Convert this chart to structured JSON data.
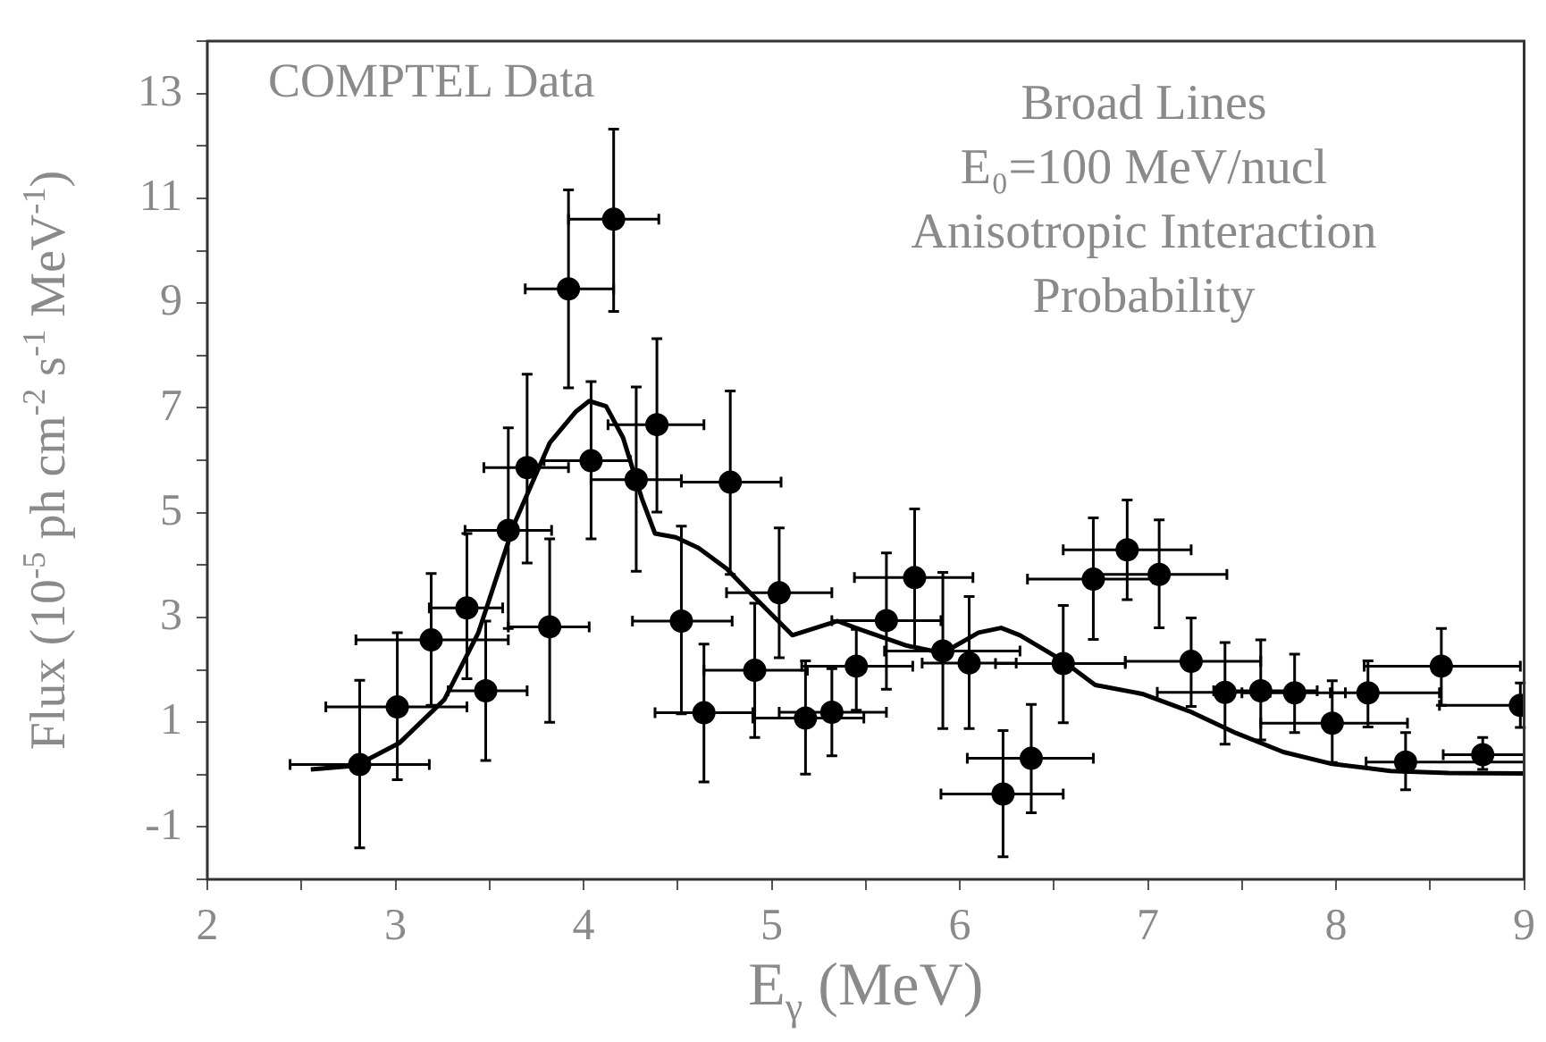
{
  "chart_data": {
    "type": "scatter",
    "xlabel": "E$_{γ}$ (MeV)",
    "ylabel": "Flux (10$^{-5}$ ph cm$^{-2}$ s$^{-1}$ MeV$^{-1}$)",
    "annotations": [
      "COMPTEL Data",
      "Broad Lines",
      "E₀=100 MeV/nucl",
      "Anisotropic Interaction",
      "Probability"
    ],
    "xlim": [
      2,
      9
    ],
    "ylim": [
      -2,
      14
    ],
    "xticks": [
      2,
      {
        "value": 2.5,
        "label": null
      },
      3,
      {
        "value": 3.5,
        "label": null
      },
      4,
      {
        "value": 4.5,
        "label": null
      },
      5,
      {
        "value": 5.5,
        "label": null
      },
      6,
      {
        "value": 6.5,
        "label": null
      },
      7,
      {
        "value": 7.5,
        "label": null
      },
      8,
      {
        "value": 8.5,
        "label": null
      },
      9
    ],
    "yticks": [
      {
        "value": -2,
        "label": null
      },
      -1,
      {
        "value": 0,
        "label": null
      },
      1,
      {
        "value": 2,
        "label": null
      },
      3,
      {
        "value": 4,
        "label": null
      },
      5,
      {
        "value": 6,
        "label": null
      },
      7,
      {
        "value": 8,
        "label": null
      },
      9,
      {
        "value": 10,
        "label": null
      },
      11,
      {
        "value": 12,
        "label": null
      },
      13,
      {
        "value": 14,
        "label": null
      }
    ],
    "grid": false,
    "legend": false,
    "marker": "circle",
    "series": [
      {
        "type": "scatter",
        "color": "#000000",
        "x": [
          2.81,
          3.01,
          3.19,
          3.38,
          3.48,
          3.6,
          3.7,
          3.82,
          3.92,
          4.16,
          4.04,
          4.28,
          4.39,
          4.78,
          4.52,
          4.64,
          4.91,
          5.04,
          5.18,
          5.32,
          5.45,
          5.61,
          5.76,
          5.91,
          6.05,
          6.23,
          6.38,
          6.55,
          6.71,
          6.89,
          7.06,
          7.23,
          7.41,
          7.6,
          7.78,
          7.98,
          8.17,
          8.37,
          8.56,
          8.78,
          8.98
        ],
        "values": [
          0.19,
          1.29,
          2.57,
          3.18,
          1.6,
          4.66,
          5.86,
          2.82,
          9.27,
          10.6,
          5.99,
          5.63,
          6.68,
          5.58,
          2.93,
          1.18,
          1.99,
          3.47,
          1.08,
          1.19,
          2.07,
          2.94,
          3.76,
          2.36,
          2.13,
          -0.37,
          0.31,
          2.12,
          3.73,
          4.29,
          3.82,
          2.16,
          1.57,
          1.6,
          1.56,
          0.98,
          1.56,
          0.24,
          2.07,
          0.38,
          1.32
        ],
        "errors": [
          [
            -1.4,
            1.8
          ],
          [
            -0.1,
            2.71
          ],
          [
            1.32,
            3.84
          ],
          [
            1.83,
            4.6
          ],
          [
            0.27,
            2.93
          ],
          [
            2.79,
            6.62
          ],
          [
            4.04,
            7.64
          ],
          [
            1.0,
            4.5
          ],
          [
            7.38,
            11.16
          ],
          [
            8.84,
            12.32
          ],
          [
            4.5,
            7.5
          ],
          [
            3.88,
            7.4
          ],
          [
            5.01,
            8.32
          ],
          [
            3.82,
            7.32
          ],
          [
            1.16,
            4.74
          ],
          [
            -0.14,
            2.49
          ],
          [
            0.71,
            3.27
          ],
          [
            2.23,
            4.71
          ],
          [
            0.01,
            2.17
          ],
          [
            0.36,
            2.02
          ],
          [
            1.23,
            2.77
          ],
          [
            1.63,
            4.23
          ],
          [
            2.43,
            5.07
          ],
          [
            0.88,
            3.86
          ],
          [
            0.88,
            3.4
          ],
          [
            -1.57,
            0.84
          ],
          [
            -0.73,
            1.34
          ],
          [
            0.99,
            3.23
          ],
          [
            2.58,
            4.9
          ],
          [
            3.34,
            5.24
          ],
          [
            2.8,
            4.86
          ],
          [
            1.3,
            2.99
          ],
          [
            0.58,
            2.52
          ],
          [
            0.66,
            2.57
          ],
          [
            0.8,
            2.3
          ],
          [
            0.23,
            1.79
          ],
          [
            0.91,
            2.17
          ],
          [
            -0.29,
            0.8
          ],
          [
            1.32,
            2.79
          ],
          [
            0.1,
            0.71
          ],
          [
            0.9,
            1.75
          ]
        ],
        "xerrors": [
          [
            2.44,
            3.18
          ],
          [
            2.63,
            3.38
          ],
          [
            2.79,
            3.6
          ],
          [
            3.18,
            3.57
          ],
          [
            3.28,
            3.7
          ],
          [
            3.37,
            3.83
          ],
          [
            3.47,
            3.92
          ],
          [
            3.6,
            4.03
          ],
          [
            3.69,
            4.16
          ],
          [
            3.92,
            4.4
          ],
          [
            3.79,
            4.25
          ],
          [
            4.04,
            4.52
          ],
          [
            4.13,
            4.64
          ],
          [
            4.52,
            5.05
          ],
          [
            4.26,
            4.79
          ],
          [
            4.38,
            4.9
          ],
          [
            4.64,
            5.19
          ],
          [
            4.76,
            5.32
          ],
          [
            4.9,
            5.49
          ],
          [
            5.04,
            5.61
          ],
          [
            5.16,
            5.75
          ],
          [
            5.32,
            5.9
          ],
          [
            5.44,
            6.07
          ],
          [
            5.6,
            6.32
          ],
          [
            5.8,
            6.3
          ],
          [
            5.9,
            6.55
          ],
          [
            6.04,
            6.71
          ],
          [
            6.19,
            6.88
          ],
          [
            6.36,
            7.03
          ],
          [
            6.55,
            7.23
          ],
          [
            6.72,
            7.42
          ],
          [
            6.88,
            7.6
          ],
          [
            7.05,
            7.65
          ],
          [
            7.35,
            7.9
          ],
          [
            7.5,
            8.05
          ],
          [
            7.6,
            8.38
          ],
          [
            7.97,
            8.55
          ],
          [
            8.16,
            9.0
          ],
          [
            8.15,
            8.98
          ],
          [
            8.57,
            9.0
          ],
          [
            8.55,
            9.0
          ]
        ]
      },
      {
        "type": "line",
        "color": "#000000",
        "marker": "none",
        "x": [
          2.55,
          2.79,
          3.02,
          3.26,
          3.44,
          3.63,
          3.82,
          3.96,
          4.03,
          4.12,
          4.21,
          4.31,
          4.38,
          4.49,
          4.61,
          4.76,
          4.88,
          5.11,
          5.35,
          5.47,
          5.72,
          5.91,
          6.1,
          6.22,
          6.32,
          6.54,
          6.72,
          6.97,
          7.22,
          7.47,
          7.72,
          7.97,
          8.29,
          8.6,
          9.0
        ],
        "values": [
          0.1,
          0.17,
          0.6,
          1.43,
          2.7,
          4.77,
          6.33,
          6.93,
          7.13,
          7.03,
          6.43,
          5.27,
          4.6,
          4.53,
          4.33,
          3.93,
          3.49,
          2.66,
          2.93,
          2.77,
          2.46,
          2.32,
          2.71,
          2.8,
          2.66,
          2.19,
          1.71,
          1.54,
          1.21,
          0.79,
          0.43,
          0.21,
          0.07,
          0.03,
          0.02
        ]
      }
    ]
  }
}
